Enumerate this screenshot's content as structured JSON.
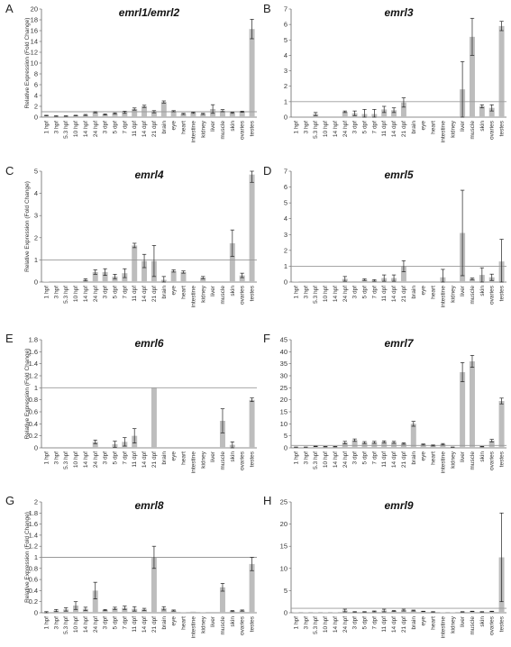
{
  "chart_data": [
    {
      "panel": "A",
      "title": "emrl1/emrl2",
      "type": "bar",
      "ylabel": "Relative Expression (Fold Change)",
      "ylim": [
        0,
        20
      ],
      "yticks": [
        0,
        2,
        4,
        6,
        8,
        10,
        12,
        14,
        16,
        18,
        20
      ],
      "reference_line": 1,
      "categories": [
        "1 hpf",
        "3 hpf",
        "5.3 hpf",
        "10 hpf",
        "14 hpf",
        "24 hpf",
        "3 dpf",
        "5 dpf",
        "7 dpf",
        "11 dpf",
        "14 dpf",
        "21 dpf",
        "brain",
        "eye",
        "heart",
        "intestine",
        "kidney",
        "liver",
        "muscle",
        "skin",
        "ovaries",
        "testes"
      ],
      "values": [
        0.3,
        0.2,
        0.2,
        0.3,
        0.4,
        0.9,
        0.5,
        0.7,
        0.9,
        1.5,
        2.0,
        1.0,
        2.8,
        1.1,
        0.6,
        0.8,
        0.6,
        1.5,
        1.2,
        0.8,
        1.0,
        16.3
      ],
      "errors": [
        0.05,
        0.05,
        0.05,
        0.05,
        0.1,
        0.1,
        0.1,
        0.1,
        0.2,
        0.2,
        0.2,
        0.2,
        0.2,
        0.1,
        0.1,
        0.1,
        0.1,
        0.8,
        0.2,
        0.1,
        0.1,
        1.8
      ]
    },
    {
      "panel": "B",
      "title": "emrl3",
      "type": "bar",
      "ylabel": "",
      "ylim": [
        0,
        7
      ],
      "yticks": [
        0,
        1,
        2,
        3,
        4,
        5,
        6,
        7
      ],
      "reference_line": 1,
      "categories": [
        "1 hpf",
        "3 hpf",
        "5.3 hpf",
        "10 hpf",
        "14 hpf",
        "24 hpf",
        "3 dpf",
        "5 dpf",
        "7 dpf",
        "11 dpf",
        "14 dpf",
        "21 dpf",
        "brain",
        "eye",
        "heart",
        "intestine",
        "kidney",
        "liver",
        "muscle",
        "skin",
        "ovaries",
        "testes"
      ],
      "values": [
        0.0,
        0.0,
        0.2,
        0.0,
        0.05,
        0.35,
        0.25,
        0.2,
        0.2,
        0.5,
        0.45,
        0.95,
        0.05,
        0.05,
        0.05,
        0.05,
        0.05,
        1.8,
        5.2,
        0.7,
        0.6,
        5.9
      ],
      "errors": [
        0,
        0,
        0.1,
        0,
        0,
        0.05,
        0.15,
        0.3,
        0.3,
        0.2,
        0.15,
        0.3,
        0,
        0,
        0,
        0,
        0,
        1.8,
        1.2,
        0.1,
        0.2,
        0.3
      ]
    },
    {
      "panel": "C",
      "title": "emrl4",
      "type": "bar",
      "ylabel": "Relative Expression (Fold Change)",
      "ylim": [
        0,
        5
      ],
      "yticks": [
        0,
        1,
        2,
        3,
        4,
        5
      ],
      "reference_line": 1,
      "categories": [
        "1 hpf",
        "3 hpf",
        "5.3 hpf",
        "10 hpf",
        "14 hpf",
        "24 hpf",
        "3 dpf",
        "5 dpf",
        "7 dpf",
        "11 dpf",
        "14 dpf",
        "21 dpf",
        "brain",
        "eye",
        "heart",
        "intestine",
        "kidney",
        "liver",
        "muscle",
        "skin",
        "ovaries",
        "testes"
      ],
      "values": [
        0.02,
        0.0,
        0.0,
        0.0,
        0.1,
        0.45,
        0.45,
        0.25,
        0.4,
        1.65,
        0.95,
        0.95,
        0.1,
        0.5,
        0.45,
        0.0,
        0.2,
        0.0,
        0.0,
        1.75,
        0.3,
        4.85
      ],
      "errors": [
        0,
        0,
        0,
        0,
        0.05,
        0.1,
        0.15,
        0.1,
        0.2,
        0.1,
        0.3,
        0.7,
        0.15,
        0.05,
        0.05,
        0,
        0.05,
        0,
        0,
        0.6,
        0.1,
        0.35
      ]
    },
    {
      "panel": "D",
      "title": "emrl5",
      "type": "bar",
      "ylabel": "",
      "ylim": [
        0,
        7
      ],
      "yticks": [
        0,
        1,
        2,
        3,
        4,
        5,
        6,
        7
      ],
      "reference_line": 1,
      "categories": [
        "1 hpf",
        "3 hpf",
        "5.3 hpf",
        "10 hpf",
        "14 hpf",
        "24 hpf",
        "3 dpf",
        "5 dpf",
        "7 dpf",
        "11 dpf",
        "14 dpf",
        "21 dpf",
        "brain",
        "eye",
        "heart",
        "intestine",
        "kidney",
        "liver",
        "muscle",
        "skin",
        "ovaries",
        "testes"
      ],
      "values": [
        0.02,
        0.0,
        0.05,
        0.05,
        0.0,
        0.2,
        0.05,
        0.15,
        0.1,
        0.25,
        0.25,
        1.0,
        0.05,
        0.05,
        0.05,
        0.3,
        0.05,
        3.1,
        0.2,
        0.45,
        0.3,
        1.3
      ],
      "errors": [
        0,
        0,
        0,
        0,
        0,
        0.15,
        0,
        0.05,
        0.05,
        0.2,
        0.2,
        0.35,
        0,
        0,
        0,
        0.5,
        0,
        2.7,
        0.05,
        0.45,
        0.2,
        1.4
      ]
    },
    {
      "panel": "E",
      "title": "emrl6",
      "type": "bar",
      "ylabel": "Relative Expression (Fold Change)",
      "ylim": [
        0,
        1.8
      ],
      "yticks": [
        0,
        0.2,
        0.4,
        0.6,
        0.8,
        1,
        1.2,
        1.4,
        1.6,
        1.8
      ],
      "reference_line": 1,
      "categories": [
        "1 hpf",
        "3 hpf",
        "5.3 hpf",
        "10 hpf",
        "14 hpf",
        "24 hpf",
        "3 dpf",
        "5 dpf",
        "7 dpf",
        "11 dpf",
        "14 dpf",
        "21 dpf",
        "brain",
        "eye",
        "heart",
        "intestine",
        "kidney",
        "liver",
        "muscle",
        "skin",
        "ovaries",
        "testes"
      ],
      "values": [
        0,
        0,
        0,
        0,
        0,
        0.1,
        0,
        0.06,
        0.1,
        0.2,
        0,
        1.0,
        0,
        0,
        0,
        0,
        0,
        0,
        0.45,
        0.05,
        0,
        0.8
      ],
      "errors": [
        0,
        0,
        0,
        0,
        0,
        0.03,
        0,
        0.05,
        0.07,
        0.12,
        0,
        0,
        0,
        0,
        0,
        0,
        0,
        0,
        0.2,
        0.05,
        0,
        0.03
      ]
    },
    {
      "panel": "F",
      "title": "emrl7",
      "type": "bar",
      "ylabel": "",
      "ylim": [
        0,
        45
      ],
      "yticks": [
        0,
        5,
        10,
        15,
        20,
        25,
        30,
        35,
        40,
        45
      ],
      "reference_line": 1,
      "categories": [
        "1 hpf",
        "3 hpf",
        "5.3 hpf",
        "10 hpf",
        "14 hpf",
        "24 hpf",
        "3 dpf",
        "5 dpf",
        "7 dpf",
        "11 dpf",
        "14 dpf",
        "21 dpf",
        "brain",
        "eye",
        "heart",
        "intestine",
        "kidney",
        "liver",
        "muscle",
        "skin",
        "ovaries",
        "testes"
      ],
      "values": [
        0.3,
        0.3,
        0.6,
        0.5,
        0.5,
        2.2,
        3.2,
        2.2,
        2.3,
        2.5,
        2.3,
        1.8,
        10.0,
        1.4,
        1.0,
        1.5,
        0.3,
        31.5,
        36.0,
        0.5,
        3.0,
        19.5
      ],
      "errors": [
        0.05,
        0.05,
        0.1,
        0.1,
        0.1,
        0.5,
        0.5,
        0.4,
        0.4,
        0.4,
        0.4,
        0.3,
        1.0,
        0.2,
        0.2,
        0.3,
        0.05,
        4.0,
        2.5,
        0.1,
        0.5,
        1.2
      ]
    },
    {
      "panel": "G",
      "title": "emrl8",
      "type": "bar",
      "ylabel": "Relative Expression (Fold Change)",
      "ylim": [
        0,
        2
      ],
      "yticks": [
        0,
        0.2,
        0.4,
        0.6,
        0.8,
        1,
        1.2,
        1.4,
        1.6,
        1.8,
        2
      ],
      "reference_line": 1,
      "categories": [
        "1 hpf",
        "3 hpf",
        "5.3 hpf",
        "10 hpf",
        "14 hpf",
        "24 hpf",
        "3 dpf",
        "5 dpf",
        "7 dpf",
        "11 dpf",
        "14 dpf",
        "21 dpf",
        "brain",
        "eye",
        "heart",
        "intestine",
        "kidney",
        "liver",
        "muscle",
        "skin",
        "ovaries",
        "testes"
      ],
      "values": [
        0.01,
        0.04,
        0.06,
        0.13,
        0.07,
        0.4,
        0.05,
        0.08,
        0.09,
        0.07,
        0.06,
        1.0,
        0.08,
        0.04,
        0.01,
        0.02,
        0.01,
        0.0,
        0.46,
        0.03,
        0.04,
        0.88
      ],
      "errors": [
        0.01,
        0.02,
        0.03,
        0.07,
        0.03,
        0.15,
        0.01,
        0.02,
        0.03,
        0.04,
        0.02,
        0.2,
        0.03,
        0.01,
        0,
        0,
        0,
        0,
        0.07,
        0.01,
        0.01,
        0.12
      ]
    },
    {
      "panel": "H",
      "title": "emrl9",
      "type": "bar",
      "ylabel": "",
      "ylim": [
        0,
        25
      ],
      "yticks": [
        0,
        5,
        10,
        15,
        20,
        25
      ],
      "reference_line": 1,
      "categories": [
        "1 hpf",
        "3 hpf",
        "5.3 hpf",
        "10 hpf",
        "14 hpf",
        "24 hpf",
        "3 dpf",
        "5 dpf",
        "7 dpf",
        "11 dpf",
        "14 dpf",
        "21 dpf",
        "brain",
        "eye",
        "heart",
        "intestine",
        "kidney",
        "liver",
        "muscle",
        "skin",
        "ovaries",
        "testes"
      ],
      "values": [
        0.1,
        0.1,
        0.1,
        0.1,
        0.1,
        0.5,
        0.2,
        0.2,
        0.3,
        0.5,
        0.4,
        0.6,
        0.5,
        0.3,
        0.2,
        0.1,
        0.1,
        0.2,
        0.3,
        0.2,
        0.3,
        12.5
      ],
      "errors": [
        0,
        0,
        0,
        0,
        0,
        0.3,
        0.05,
        0.05,
        0.1,
        0.3,
        0.1,
        0.2,
        0.1,
        0.05,
        0.05,
        0,
        0,
        0.05,
        0.05,
        0.05,
        0.05,
        10.0
      ]
    }
  ],
  "colors": {
    "bar": "#bdbdbd",
    "error": "#222222",
    "reference": "#9a9a9a",
    "axis": "#666666"
  }
}
